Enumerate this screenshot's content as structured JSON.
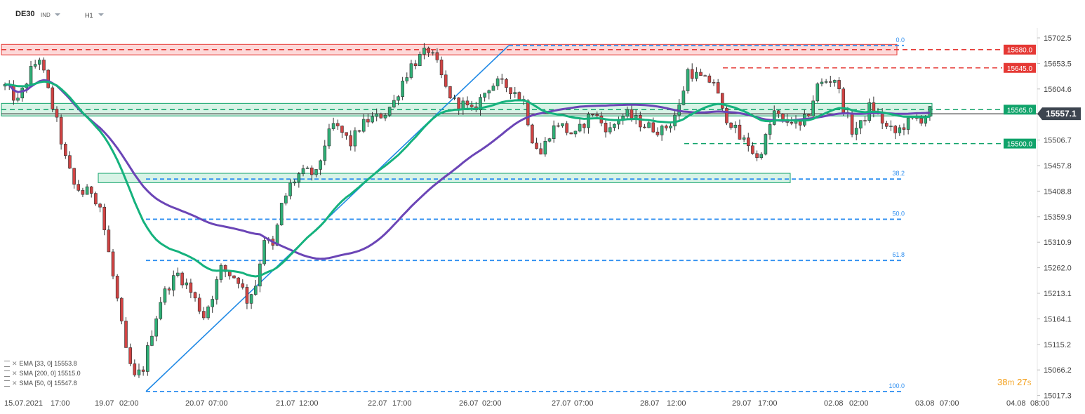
{
  "header": {
    "symbol": "DE30",
    "type": "IND",
    "timeframe": "H1"
  },
  "legend": [
    {
      "name": "EMA",
      "params": "[33, 0]",
      "value": "15553.8"
    },
    {
      "name": "SMA",
      "params": "[200, 0]",
      "value": "15515.0"
    },
    {
      "name": "SMA",
      "params": "[50, 0]",
      "value": "15547.8"
    }
  ],
  "timer": {
    "minutes": "38",
    "m_unit": "m",
    "seconds": "27",
    "s_unit": "s"
  },
  "colors": {
    "bull": "#2eaf76",
    "bear": "#d14343",
    "wick": "#333333",
    "ema": "#15b27d",
    "sma200": "#6b45b6",
    "trend": "#1e88e5",
    "red_level": "#e53935",
    "green_level": "#10a36a",
    "fib": "#2f8ff0",
    "zone_red": "#fdd8d8",
    "zone_green": "#d8f3e6",
    "current": "#3d4550"
  },
  "chart_data": {
    "type": "candlestick",
    "instrument": "DE30",
    "timeframe": "H1",
    "ylim": [
      15000,
      15730
    ],
    "y_ticks": [
      "15702.5",
      "15653.5",
      "15604.6",
      "15555.7",
      "15506.7",
      "15457.8",
      "15408.8",
      "15359.9",
      "15310.9",
      "15262.0",
      "15213.1",
      "15164.1",
      "15115.2",
      "15066.2",
      "15017.3"
    ],
    "x_ticks": [
      "15.07.2021",
      "17:00",
      "19.07",
      "02:00",
      "20.07",
      "07:00",
      "21.07",
      "12:00",
      "22.07",
      "17:00",
      "26.07",
      "02:00",
      "27.07",
      "07:00",
      "28.07",
      "12:00",
      "29.07",
      "17:00",
      "02.08",
      "02:00",
      "03.08",
      "07:00",
      "04.08",
      "08:00"
    ],
    "current_price": "15557.1",
    "level_labels": [
      {
        "value": "15680.0",
        "kind": "resistance"
      },
      {
        "value": "15645.0",
        "kind": "resistance"
      },
      {
        "value": "15565.0",
        "kind": "support"
      },
      {
        "value": "15500.0",
        "kind": "support"
      }
    ],
    "fib_levels": [
      {
        "label": "0.0",
        "price": 15688
      },
      {
        "label": "38.2",
        "price": 15432
      },
      {
        "label": "50.0",
        "price": 15355
      },
      {
        "label": "61.8",
        "price": 15276
      },
      {
        "label": "100.0",
        "price": 15025
      }
    ],
    "zones": [
      {
        "kind": "resistance",
        "low": 15670,
        "high": 15690
      },
      {
        "kind": "support",
        "low": 15553,
        "high": 15577
      },
      {
        "kind": "support",
        "low": 15425,
        "high": 15443
      }
    ],
    "indicators": [
      {
        "name": "EMA",
        "period": 33,
        "last": 15553.8
      },
      {
        "name": "SMA",
        "period": 200,
        "last": 15515.0
      },
      {
        "name": "SMA",
        "period": 50,
        "last": 15547.8
      }
    ],
    "price_path": [
      [
        0,
        15610
      ],
      [
        3,
        15580
      ],
      [
        6,
        15640
      ],
      [
        8,
        15665
      ],
      [
        10,
        15600
      ],
      [
        12,
        15540
      ],
      [
        14,
        15470
      ],
      [
        16,
        15420
      ],
      [
        18,
        15405
      ],
      [
        20,
        15410
      ],
      [
        22,
        15380
      ],
      [
        24,
        15290
      ],
      [
        26,
        15200
      ],
      [
        28,
        15100
      ],
      [
        30,
        15050
      ],
      [
        32,
        15070
      ],
      [
        34,
        15140
      ],
      [
        36,
        15200
      ],
      [
        38,
        15230
      ],
      [
        40,
        15250
      ],
      [
        42,
        15230
      ],
      [
        44,
        15200
      ],
      [
        46,
        15170
      ],
      [
        48,
        15210
      ],
      [
        50,
        15260
      ],
      [
        52,
        15250
      ],
      [
        54,
        15240
      ],
      [
        56,
        15200
      ],
      [
        58,
        15230
      ],
      [
        60,
        15320
      ],
      [
        62,
        15300
      ],
      [
        64,
        15380
      ],
      [
        66,
        15420
      ],
      [
        68,
        15440
      ],
      [
        70,
        15445
      ],
      [
        72,
        15440
      ],
      [
        74,
        15500
      ],
      [
        76,
        15535
      ],
      [
        78,
        15520
      ],
      [
        80,
        15500
      ],
      [
        82,
        15530
      ],
      [
        84,
        15545
      ],
      [
        86,
        15550
      ],
      [
        88,
        15560
      ],
      [
        90,
        15580
      ],
      [
        92,
        15620
      ],
      [
        94,
        15650
      ],
      [
        96,
        15665
      ],
      [
        98,
        15680
      ],
      [
        100,
        15650
      ],
      [
        102,
        15605
      ],
      [
        104,
        15580
      ],
      [
        106,
        15575
      ],
      [
        108,
        15560
      ],
      [
        110,
        15585
      ],
      [
        112,
        15610
      ],
      [
        114,
        15615
      ],
      [
        116,
        15610
      ],
      [
        118,
        15600
      ],
      [
        120,
        15580
      ],
      [
        122,
        15510
      ],
      [
        124,
        15480
      ],
      [
        126,
        15520
      ],
      [
        128,
        15540
      ],
      [
        130,
        15525
      ],
      [
        132,
        15515
      ],
      [
        134,
        15540
      ],
      [
        136,
        15560
      ],
      [
        138,
        15540
      ],
      [
        140,
        15525
      ],
      [
        142,
        15550
      ],
      [
        144,
        15555
      ],
      [
        146,
        15545
      ],
      [
        148,
        15535
      ],
      [
        150,
        15530
      ],
      [
        152,
        15525
      ],
      [
        154,
        15540
      ],
      [
        156,
        15570
      ],
      [
        158,
        15640
      ],
      [
        160,
        15630
      ],
      [
        162,
        15620
      ],
      [
        164,
        15620
      ],
      [
        166,
        15560
      ],
      [
        168,
        15540
      ],
      [
        170,
        15510
      ],
      [
        172,
        15500
      ],
      [
        174,
        15470
      ],
      [
        176,
        15510
      ],
      [
        178,
        15560
      ],
      [
        180,
        15540
      ],
      [
        182,
        15545
      ],
      [
        184,
        15530
      ],
      [
        186,
        15560
      ],
      [
        188,
        15610
      ],
      [
        190,
        15620
      ],
      [
        192,
        15625
      ],
      [
        194,
        15570
      ],
      [
        196,
        15525
      ],
      [
        198,
        15535
      ],
      [
        200,
        15570
      ],
      [
        202,
        15555
      ],
      [
        204,
        15530
      ],
      [
        206,
        15520
      ],
      [
        208,
        15535
      ],
      [
        210,
        15545
      ],
      [
        212,
        15548
      ],
      [
        214,
        15562
      ]
    ]
  }
}
